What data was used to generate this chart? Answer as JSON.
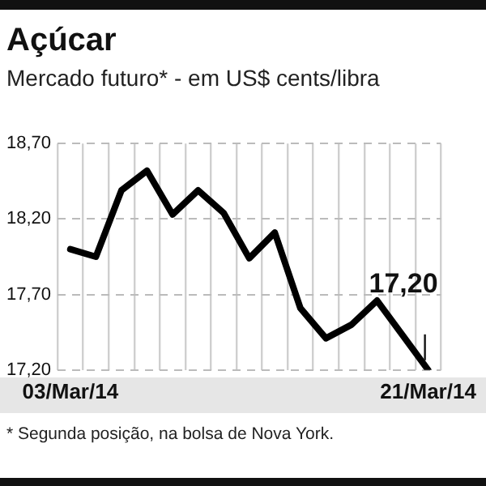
{
  "chart_data": {
    "type": "line",
    "title": "Açúcar",
    "subtitle": "Mercado futuro* - em US$ cents/libra",
    "categories": [
      "03/Mar/14",
      null,
      null,
      null,
      null,
      null,
      null,
      null,
      null,
      null,
      null,
      null,
      null,
      null,
      "21/Mar/14"
    ],
    "series": [
      {
        "color": "#000000",
        "values": [
          18.0,
          17.95,
          18.39,
          18.52,
          18.23,
          18.39,
          18.24,
          17.94,
          18.11,
          17.61,
          17.41,
          17.5,
          17.66,
          17.43,
          17.2
        ]
      }
    ],
    "ylim": [
      17.2,
      18.7
    ],
    "yticks": [
      {
        "value": 17.2,
        "label": "17,20"
      },
      {
        "value": 17.7,
        "label": "17,70"
      },
      {
        "value": 18.2,
        "label": "18,20"
      },
      {
        "value": 18.7,
        "label": "18,70"
      }
    ],
    "grid": true,
    "legend": false,
    "marker": "none",
    "line_style": "solid",
    "annotations": [
      {
        "text": "17,20",
        "x": "21/Mar/14",
        "y": 17.2
      },
      "* Segunda posição, na bolsa de Nova York."
    ]
  }
}
